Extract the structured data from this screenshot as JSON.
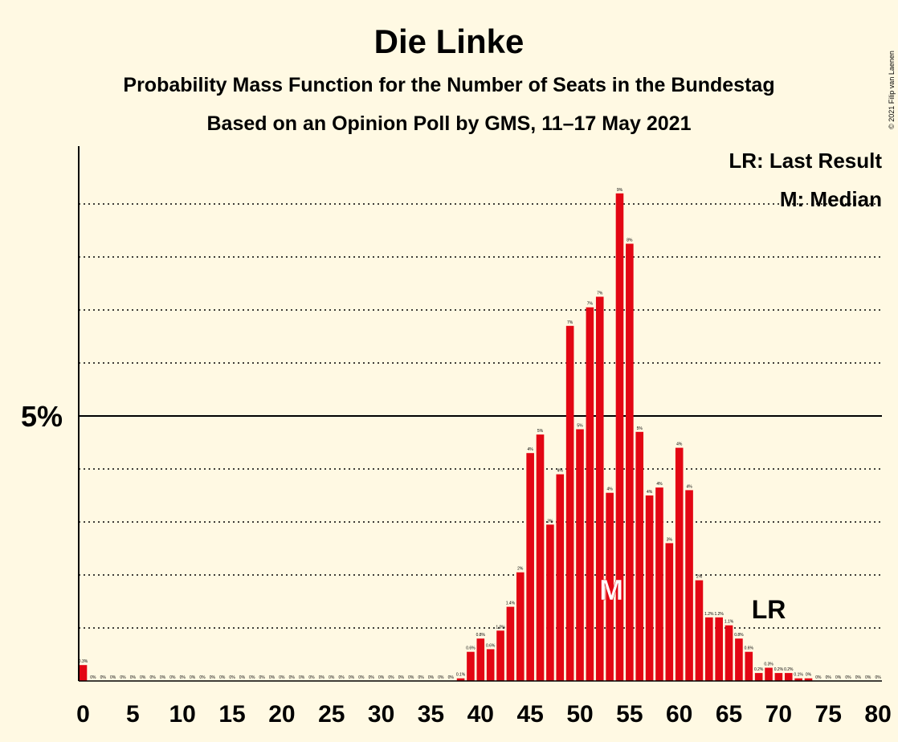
{
  "chart_data": {
    "type": "bar",
    "title": "Die Linke",
    "subtitle1": "Probability Mass Function for the Number of Seats in the Bundestag",
    "subtitle2": "Based on an Opinion Poll by GMS, 11–17 May 2021",
    "copyright": "© 2021 Filip van Laenen",
    "y_tick_label": "5%",
    "x_ticks": [
      0,
      5,
      10,
      15,
      20,
      25,
      30,
      35,
      40,
      45,
      50,
      55,
      60,
      65,
      70,
      75,
      80
    ],
    "legend": {
      "last_result": "LR: Last Result",
      "median": "M: Median"
    },
    "markers": {
      "median_label": "M",
      "median_seat": 53,
      "last_result_label": "LR",
      "last_result_seat": 69
    },
    "ylim": [
      0,
      10
    ],
    "grid_step": 1,
    "bar_color": "#e30613",
    "seats": [
      0,
      1,
      2,
      3,
      4,
      5,
      6,
      7,
      8,
      9,
      10,
      11,
      12,
      13,
      14,
      15,
      16,
      17,
      18,
      19,
      20,
      21,
      22,
      23,
      24,
      25,
      26,
      27,
      28,
      29,
      30,
      31,
      32,
      33,
      34,
      35,
      36,
      37,
      38,
      39,
      40,
      41,
      42,
      43,
      44,
      45,
      46,
      47,
      48,
      49,
      50,
      51,
      52,
      53,
      54,
      55,
      56,
      57,
      58,
      59,
      60,
      61,
      62,
      63,
      64,
      65,
      66,
      67,
      68,
      69,
      70,
      71,
      72,
      73,
      74,
      75,
      76,
      77,
      78,
      79,
      80
    ],
    "values": [
      0.3,
      0,
      0,
      0,
      0,
      0,
      0,
      0,
      0,
      0,
      0,
      0,
      0,
      0,
      0,
      0,
      0,
      0,
      0,
      0,
      0,
      0,
      0,
      0,
      0,
      0,
      0,
      0,
      0,
      0,
      0,
      0,
      0,
      0,
      0,
      0,
      0,
      0,
      0.05,
      0.55,
      0.8,
      0.6,
      0.95,
      1.4,
      2.05,
      4.3,
      4.65,
      2.95,
      3.9,
      6.7,
      4.75,
      7.05,
      7.25,
      3.55,
      9.2,
      8.25,
      4.7,
      3.5,
      3.65,
      2.6,
      4.4,
      3.6,
      1.9,
      1.2,
      1.2,
      1.05,
      0.8,
      0.55,
      0.15,
      0.25,
      0.15,
      0.15,
      0.05,
      0.05,
      0,
      0,
      0,
      0,
      0,
      0,
      0
    ],
    "labels": [
      "0.3%",
      "0%",
      "0%",
      "0%",
      "0%",
      "0%",
      "0%",
      "0%",
      "0%",
      "0%",
      "0%",
      "0%",
      "0%",
      "0%",
      "0%",
      "0%",
      "0%",
      "0%",
      "0%",
      "0%",
      "0%",
      "0%",
      "0%",
      "0%",
      "0%",
      "0%",
      "0%",
      "0%",
      "0%",
      "0%",
      "0%",
      "0%",
      "0%",
      "0%",
      "0%",
      "0%",
      "0%",
      "0%",
      "0.1%",
      "0.6%",
      "0.8%",
      "0.6%",
      "1.0%",
      "1.4%",
      "2%",
      "4%",
      "5%",
      "3%",
      "4%",
      "7%",
      "5%",
      "7%",
      "7%",
      "4%",
      "9%",
      "8%",
      "5%",
      "4%",
      "4%",
      "3%",
      "4%",
      "4%",
      "2%",
      "1.2%",
      "1.2%",
      "1.1%",
      "0.8%",
      "0.6%",
      "0.2%",
      "0.3%",
      "0.2%",
      "0.2%",
      "0.1%",
      "0%",
      "0%",
      "0%",
      "0%",
      "0%",
      "0%",
      "0%",
      "0%"
    ]
  }
}
